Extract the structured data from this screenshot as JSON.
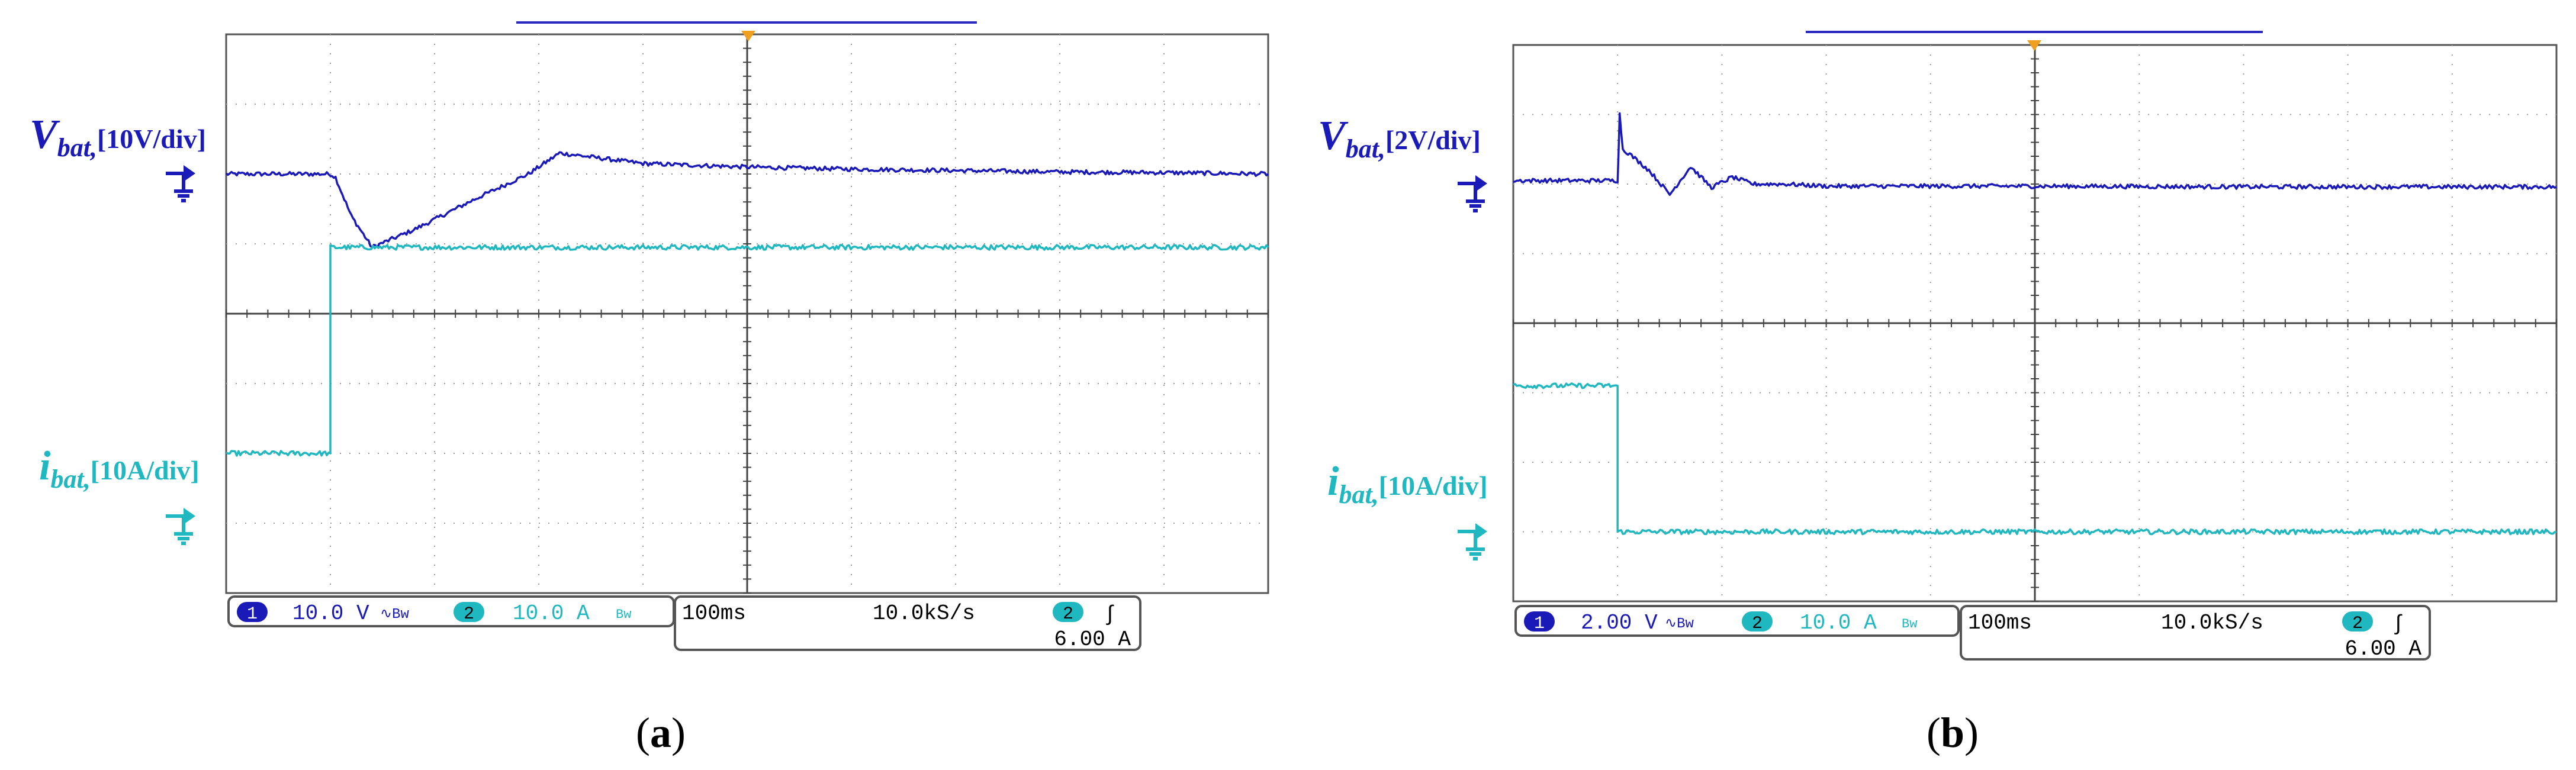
{
  "colors": {
    "ch1": "#1a1ab8",
    "ch2": "#1fb8c0",
    "grid": "#9a9a9a",
    "frame": "#555555",
    "trigger": "#f0a020"
  },
  "scopes": [
    {
      "id": "a",
      "caption_open": "(",
      "caption_letter": "a",
      "caption_close": ")",
      "ch1_label_main": "V",
      "ch1_label_sub": "bat,",
      "ch1_label_scale": "[10V/div]",
      "ch2_label_main": "i",
      "ch2_label_sub": "bat,",
      "ch2_label_scale": "[10A/div]",
      "ch1_badge": "1",
      "ch1_scale": "10.0 V",
      "ch1_coupling": "∿Bw",
      "ch2_badge": "2",
      "ch2_scale": "10.0 A",
      "ch2_coupling": "Bw",
      "timebase": "100ms",
      "sample_rate": "10.0kS/s",
      "trigger_badge": "2",
      "trigger_slope": "∫",
      "trigger_level": "6.00 A"
    },
    {
      "id": "b",
      "caption_open": "(",
      "caption_letter": "b",
      "caption_close": ")",
      "ch1_label_main": "V",
      "ch1_label_sub": "bat,",
      "ch1_label_scale": "[2V/div]",
      "ch2_label_main": "i",
      "ch2_label_sub": "bat,",
      "ch2_label_scale": "[10A/div]",
      "ch1_badge": "1",
      "ch1_scale": "2.00 V",
      "ch1_coupling": "∿Bw",
      "ch2_badge": "2",
      "ch2_scale": "10.0 A",
      "ch2_coupling": "Bw",
      "timebase": "100ms",
      "sample_rate": "10.0kS/s",
      "trigger_badge": "2",
      "trigger_slope": "∫",
      "trigger_level": "6.00 A"
    }
  ],
  "chart_data": [
    {
      "type": "line",
      "grid": true,
      "x_divisions": 10,
      "y_divisions": 8,
      "x_unit": "div (100ms/div)",
      "y_unit": "div",
      "xlim": [
        0,
        10
      ],
      "ylim": [
        -4,
        4
      ],
      "series": [
        {
          "name": "V_bat",
          "color": "#1a1ab8",
          "x": [
            0,
            1.0,
            1.05,
            1.2,
            1.4,
            1.8,
            2.4,
            2.9,
            3.2,
            4.0,
            5.0,
            6.0,
            7.0,
            8.0,
            9.0,
            10.0
          ],
          "y": [
            2.0,
            2.0,
            1.95,
            1.4,
            0.95,
            1.2,
            1.65,
            2.0,
            2.3,
            2.15,
            2.1,
            2.07,
            2.05,
            2.03,
            2.02,
            2.0
          ]
        },
        {
          "name": "i_bat",
          "color": "#1fb8c0",
          "x": [
            0,
            1.0,
            1.0,
            10.0
          ],
          "y": [
            -2.0,
            -2.0,
            0.95,
            0.95
          ]
        }
      ]
    },
    {
      "type": "line",
      "grid": true,
      "x_divisions": 10,
      "y_divisions": 8,
      "x_unit": "div (100ms/div)",
      "y_unit": "div",
      "xlim": [
        0,
        10
      ],
      "ylim": [
        -4,
        4
      ],
      "series": [
        {
          "name": "V_bat",
          "color": "#1a1ab8",
          "x": [
            0,
            1.0,
            1.02,
            1.05,
            1.1,
            1.3,
            1.5,
            1.7,
            1.9,
            2.1,
            2.3,
            2.6,
            3.0,
            5.0,
            7.0,
            10.0
          ],
          "y": [
            2.05,
            2.05,
            3.0,
            2.5,
            2.45,
            2.2,
            1.85,
            2.25,
            1.95,
            2.1,
            2.0,
            2.0,
            1.97,
            1.97,
            1.96,
            1.96
          ],
          "note_y_scale": "2V/div"
        },
        {
          "name": "i_bat",
          "color": "#1fb8c0",
          "x": [
            0,
            1.0,
            1.0,
            10.0
          ],
          "y": [
            -0.9,
            -0.9,
            -3.0,
            -3.0
          ]
        }
      ]
    }
  ]
}
